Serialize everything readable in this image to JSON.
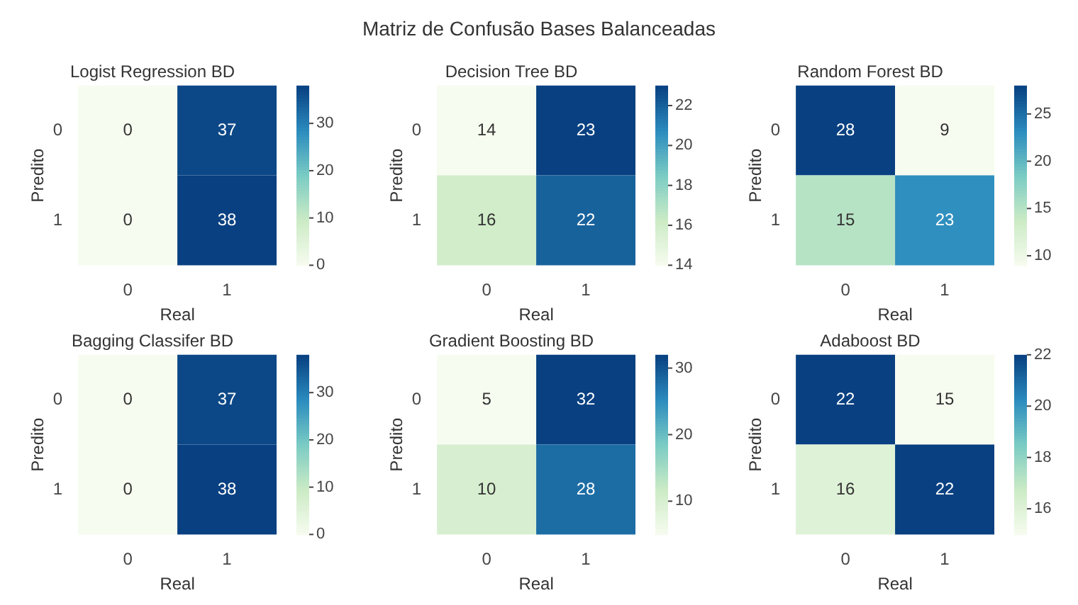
{
  "chart_data": [
    {
      "type": "heatmap",
      "title": "Logist Regression BD",
      "annotations": [
        "Matriz de Confusão Bases Balanceadas"
      ],
      "xlabel": "Real",
      "ylabel": "Predito",
      "categories": [
        "0",
        "1"
      ],
      "y_categories": [
        "0",
        "1"
      ],
      "cells": [
        [
          0,
          37
        ],
        [
          0,
          38
        ]
      ],
      "clim": [
        0,
        38
      ],
      "cticks": [
        0,
        10,
        20,
        30
      ],
      "data_labels": true
    },
    {
      "type": "heatmap",
      "title": "Decision Tree BD",
      "xlabel": "Real",
      "ylabel": "Predito",
      "categories": [
        "0",
        "1"
      ],
      "y_categories": [
        "0",
        "1"
      ],
      "cells": [
        [
          14,
          23
        ],
        [
          16,
          22
        ]
      ],
      "clim": [
        14,
        23
      ],
      "cticks": [
        14,
        16,
        18,
        20,
        22
      ],
      "data_labels": true
    },
    {
      "type": "heatmap",
      "title": "Random Forest BD",
      "xlabel": "Real",
      "ylabel": "Predito",
      "categories": [
        "0",
        "1"
      ],
      "y_categories": [
        "0",
        "1"
      ],
      "cells": [
        [
          28,
          9
        ],
        [
          15,
          23
        ]
      ],
      "clim": [
        9,
        28
      ],
      "cticks": [
        10,
        15,
        20,
        25
      ],
      "data_labels": true
    },
    {
      "type": "heatmap",
      "title": "Bagging Classifer BD",
      "xlabel": "Real",
      "ylabel": "Predito",
      "categories": [
        "0",
        "1"
      ],
      "y_categories": [
        "0",
        "1"
      ],
      "cells": [
        [
          0,
          37
        ],
        [
          0,
          38
        ]
      ],
      "clim": [
        0,
        38
      ],
      "cticks": [
        0,
        10,
        20,
        30
      ],
      "data_labels": true
    },
    {
      "type": "heatmap",
      "title": "Gradient Boosting BD",
      "xlabel": "Real",
      "ylabel": "Predito",
      "categories": [
        "0",
        "1"
      ],
      "y_categories": [
        "0",
        "1"
      ],
      "cells": [
        [
          5,
          32
        ],
        [
          10,
          28
        ]
      ],
      "clim": [
        5,
        32
      ],
      "cticks": [
        10,
        20,
        30
      ],
      "data_labels": true
    },
    {
      "type": "heatmap",
      "title": "Adaboost BD",
      "xlabel": "Real",
      "ylabel": "Predito",
      "categories": [
        "0",
        "1"
      ],
      "y_categories": [
        "0",
        "1"
      ],
      "cells": [
        [
          22,
          15
        ],
        [
          16,
          22
        ]
      ],
      "clim": [
        15,
        22
      ],
      "cticks": [
        16,
        18,
        20,
        22
      ],
      "data_labels": true
    }
  ]
}
